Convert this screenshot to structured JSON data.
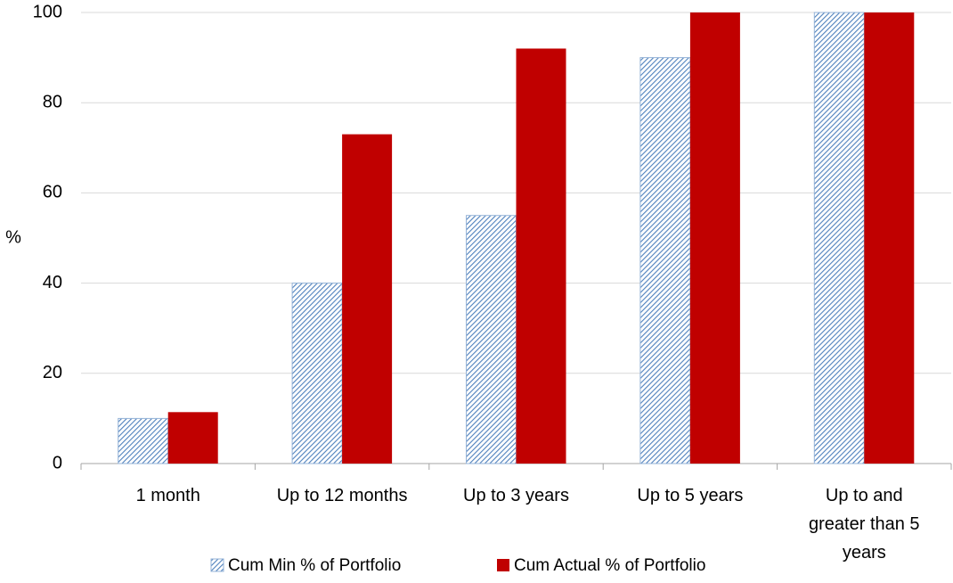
{
  "chart_data": {
    "type": "bar",
    "y_label": "%",
    "categories": [
      "1 month",
      "Up to 12 months",
      "Up to 3 years",
      "Up to 5 years",
      "Up to and greater than 5 years"
    ],
    "series": [
      {
        "name": "Cum Min % of Portfolio",
        "color": "#4f81bd",
        "pattern": "hatch",
        "values": [
          10,
          40,
          55,
          90,
          100
        ]
      },
      {
        "name": "Cum Actual % of Portfolio",
        "color": "#c00000",
        "values": [
          11.4,
          73,
          92,
          100,
          100
        ]
      }
    ],
    "ylim": [
      0,
      100
    ],
    "yticks": [
      0,
      20,
      40,
      60,
      80,
      100
    ],
    "grid": true,
    "legend": "bottom"
  }
}
